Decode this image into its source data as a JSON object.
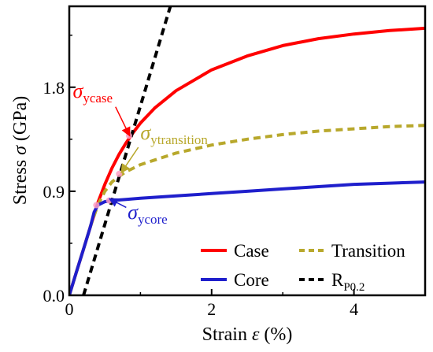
{
  "chart_data": {
    "type": "line",
    "xlabel_pre": "Strain ",
    "xlabel_sym": "ε",
    "xlabel_post": " (%)",
    "ylabel_pre": "Stress ",
    "ylabel_sym": "σ",
    "ylabel_post": " (GPa)",
    "xlim": [
      0,
      5
    ],
    "ylim": [
      0,
      2.5
    ],
    "xticks": [
      0,
      2,
      4
    ],
    "xtick_labels": [
      "0",
      "2",
      "4"
    ],
    "yticks": [
      0,
      0.9,
      1.8
    ],
    "ytick_labels": [
      "0.0",
      "0.9",
      "1.8"
    ],
    "grid": false,
    "legend_placement": "bottom-right",
    "series": [
      {
        "name": "Case",
        "color": "#ff0000",
        "dash": "solid",
        "x": [
          0,
          0.1,
          0.2,
          0.3,
          0.4,
          0.5,
          0.6,
          0.7,
          0.8,
          0.9,
          1.0,
          1.2,
          1.5,
          2.0,
          2.5,
          3.0,
          3.5,
          4.0,
          4.5,
          5.0
        ],
        "y": [
          0,
          0.2,
          0.4,
          0.6,
          0.8,
          0.96,
          1.1,
          1.22,
          1.32,
          1.41,
          1.49,
          1.62,
          1.77,
          1.95,
          2.07,
          2.16,
          2.22,
          2.26,
          2.29,
          2.31
        ]
      },
      {
        "name": "Transition",
        "color": "#b8a82c",
        "dash": "dashed",
        "x": [
          0,
          0.1,
          0.2,
          0.3,
          0.4,
          0.5,
          0.6,
          0.7,
          0.8,
          0.9,
          1.0,
          1.2,
          1.5,
          2.0,
          2.5,
          3.0,
          3.5,
          4.0,
          4.5,
          5.0
        ],
        "y": [
          0,
          0.2,
          0.4,
          0.6,
          0.78,
          0.9,
          0.98,
          1.03,
          1.07,
          1.1,
          1.13,
          1.17,
          1.23,
          1.3,
          1.35,
          1.39,
          1.42,
          1.44,
          1.46,
          1.47
        ]
      },
      {
        "name": "Core",
        "color": "#1f1fcc",
        "dash": "solid",
        "x": [
          0,
          0.1,
          0.2,
          0.3,
          0.35,
          0.4,
          0.5,
          0.6,
          0.8,
          1.0,
          1.5,
          2.0,
          2.5,
          3.0,
          3.5,
          4.0,
          4.5,
          5.0
        ],
        "y": [
          0,
          0.2,
          0.4,
          0.6,
          0.72,
          0.78,
          0.81,
          0.82,
          0.83,
          0.84,
          0.86,
          0.88,
          0.9,
          0.92,
          0.94,
          0.96,
          0.97,
          0.98
        ]
      },
      {
        "name": "RP0.2",
        "legend_main": "R",
        "legend_sub": "P0.2",
        "color": "#000000",
        "dash": "dashed",
        "x": [
          0.2,
          1.42
        ],
        "y": [
          0,
          2.5
        ]
      }
    ],
    "annotations": [
      {
        "sym": "σ",
        "sub": "ycase",
        "color": "#ff0000",
        "text_x": 0.05,
        "text_y": 1.71,
        "arrow_from": [
          0.65,
          1.63
        ],
        "arrow_to": [
          0.84,
          1.39
        ]
      },
      {
        "sym": "σ",
        "sub": "ytransition",
        "color": "#b8a82c",
        "text_x": 1.0,
        "text_y": 1.35,
        "arrow_from": [
          0.97,
          1.28
        ],
        "arrow_to": [
          0.74,
          1.07
        ]
      },
      {
        "sym": "σ",
        "sub": "ycore",
        "color": "#1f1fcc",
        "text_x": 0.82,
        "text_y": 0.66,
        "arrow_from": [
          0.8,
          0.76
        ],
        "arrow_to": [
          0.58,
          0.83
        ]
      }
    ]
  }
}
